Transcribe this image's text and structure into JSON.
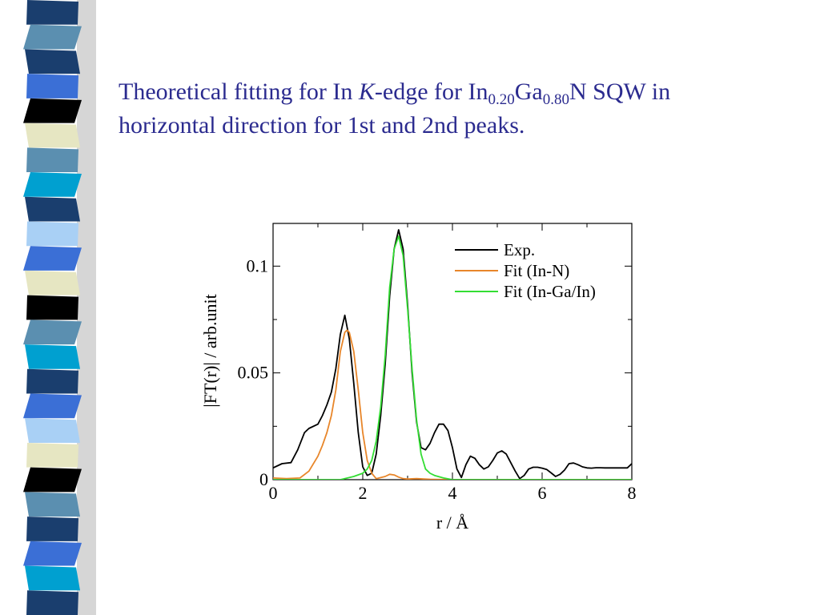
{
  "slide": {
    "title_parts": {
      "t1": "Theoretical fitting for In ",
      "t2": "K",
      "t3": "-edge for In",
      "t4": "0.20",
      "t5": "Ga",
      "t6": "0.80",
      "t7": "N SQW in",
      "t8": "horizontal direction for 1st and 2nd peaks."
    },
    "decoration_colors": [
      "#1a3e6e",
      "#5b8fb0",
      "#3b6fd6",
      "#e6e6c2",
      "#000000",
      "#00a0d0",
      "#a9d0f5"
    ]
  },
  "chart_data": {
    "type": "line",
    "title": "",
    "xlabel": "r / Å",
    "ylabel": "|FT(r)| / arb.unit",
    "xlim": [
      0,
      8
    ],
    "ylim": [
      0,
      0.12
    ],
    "xticks": [
      0,
      2,
      4,
      6,
      8
    ],
    "xtick_labels": [
      "0",
      "2",
      "4",
      "6",
      "8"
    ],
    "yticks": [
      0,
      0.05,
      0.1
    ],
    "ytick_labels": [
      "0",
      "0.05",
      "0.1"
    ],
    "legend_position": "top-right",
    "series": [
      {
        "name": "Exp.",
        "color": "#000000",
        "x": [
          0,
          0.2,
          0.4,
          0.55,
          0.7,
          0.8,
          1.0,
          1.1,
          1.2,
          1.3,
          1.4,
          1.5,
          1.6,
          1.7,
          1.8,
          1.9,
          2.0,
          2.1,
          2.2,
          2.3,
          2.4,
          2.5,
          2.6,
          2.7,
          2.8,
          2.9,
          3.0,
          3.1,
          3.2,
          3.3,
          3.4,
          3.5,
          3.6,
          3.7,
          3.8,
          3.9,
          4.0,
          4.1,
          4.2,
          4.3,
          4.4,
          4.5,
          4.6,
          4.7,
          4.8,
          4.9,
          5.0,
          5.1,
          5.2,
          5.3,
          5.4,
          5.5,
          5.6,
          5.7,
          5.8,
          5.9,
          6.0,
          6.1,
          6.2,
          6.3,
          6.4,
          6.5,
          6.6,
          6.7,
          6.8,
          6.9,
          7.0,
          7.1,
          7.2,
          7.3,
          7.4,
          7.5,
          7.6,
          7.7,
          7.8,
          7.9,
          8.0
        ],
        "y": [
          0.0055,
          0.0075,
          0.008,
          0.014,
          0.022,
          0.024,
          0.026,
          0.03,
          0.035,
          0.041,
          0.052,
          0.068,
          0.077,
          0.066,
          0.045,
          0.022,
          0.006,
          0.002,
          0.003,
          0.012,
          0.03,
          0.054,
          0.086,
          0.108,
          0.117,
          0.108,
          0.082,
          0.05,
          0.027,
          0.015,
          0.014,
          0.017,
          0.022,
          0.026,
          0.026,
          0.023,
          0.015,
          0.005,
          0.001,
          0.007,
          0.011,
          0.01,
          0.007,
          0.005,
          0.006,
          0.009,
          0.0125,
          0.0135,
          0.012,
          0.008,
          0.004,
          0.0005,
          0.002,
          0.005,
          0.0058,
          0.0058,
          0.0054,
          0.0048,
          0.0032,
          0.0015,
          0.0025,
          0.0045,
          0.0075,
          0.0078,
          0.007,
          0.006,
          0.0055,
          0.0054,
          0.0056,
          0.0056,
          0.0055,
          0.0055,
          0.0055,
          0.0055,
          0.0055,
          0.0055,
          0.0075
        ]
      },
      {
        "name": "Fit (In-N)",
        "color": "#e8862a",
        "x": [
          0,
          0.3,
          0.6,
          0.8,
          1.0,
          1.1,
          1.2,
          1.3,
          1.4,
          1.5,
          1.6,
          1.65,
          1.7,
          1.8,
          1.9,
          2.0,
          2.1,
          2.2,
          2.3,
          2.5,
          2.6,
          2.7,
          2.8,
          2.9,
          3.0,
          3.2,
          3.5,
          4.0,
          8.0
        ],
        "y": [
          0.0008,
          0.0005,
          0.0008,
          0.004,
          0.011,
          0.016,
          0.022,
          0.03,
          0.042,
          0.06,
          0.069,
          0.07,
          0.069,
          0.06,
          0.042,
          0.022,
          0.009,
          0.003,
          0.0005,
          0.0015,
          0.0025,
          0.0022,
          0.0012,
          0.0005,
          0.0003,
          0.0005,
          0.0002,
          0.0,
          0.0
        ]
      },
      {
        "name": "Fit (In-Ga/In)",
        "color": "#33dd33",
        "x": [
          0,
          1.0,
          1.5,
          1.8,
          2.0,
          2.1,
          2.2,
          2.3,
          2.4,
          2.5,
          2.6,
          2.7,
          2.8,
          2.9,
          3.0,
          3.1,
          3.2,
          3.3,
          3.4,
          3.5,
          3.6,
          3.8,
          4.0,
          8.0
        ],
        "y": [
          0.0,
          0.0,
          0.0,
          0.0015,
          0.003,
          0.005,
          0.009,
          0.018,
          0.034,
          0.058,
          0.09,
          0.108,
          0.114,
          0.105,
          0.08,
          0.052,
          0.028,
          0.012,
          0.005,
          0.003,
          0.002,
          0.0008,
          0.0,
          0.0
        ]
      }
    ]
  }
}
